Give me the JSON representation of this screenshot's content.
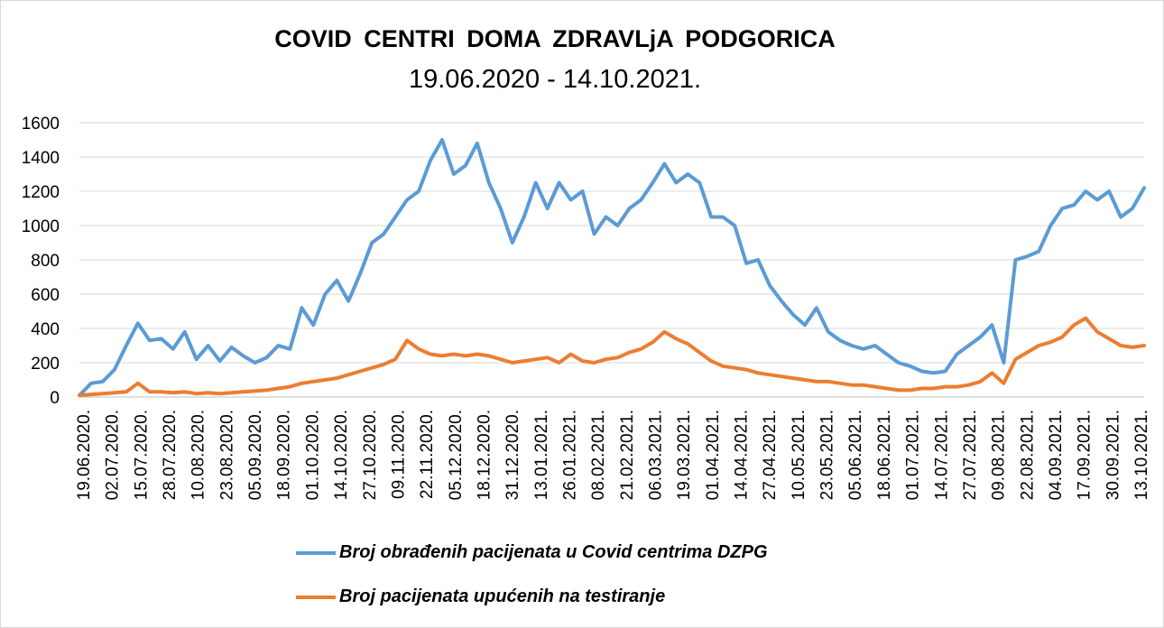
{
  "title": "COVID  CENTRI  DOMA  ZDRAVLjA  PODGORICA",
  "subtitle": "19.06.2020 - 14.10.2021.",
  "chart_data": {
    "type": "line",
    "title": "COVID  CENTRI  DOMA  ZDRAVLjA  PODGORICA",
    "subtitle": "19.06.2020 - 14.10.2021.",
    "ylim": [
      0,
      1600
    ],
    "yticks": [
      0,
      200,
      400,
      600,
      800,
      1000,
      1200,
      1400,
      1600
    ],
    "grid": true,
    "legend": "bottom",
    "x_tick_labels": [
      "19.06.2020.",
      "02.07.2020.",
      "15.07.2020.",
      "28.07.2020.",
      "10.08.2020.",
      "23.08.2020.",
      "05.09.2020.",
      "18.09.2020.",
      "01.10.2020.",
      "14.10.2020.",
      "27.10.2020.",
      "09.11.2020.",
      "22.11.2020.",
      "05.12.2020.",
      "18.12.2020.",
      "31.12.2020.",
      "13.01.2021.",
      "26.01.2021.",
      "08.02.2021.",
      "21.02.2021.",
      "06.03.2021.",
      "19.03.2021.",
      "01.04.2021.",
      "14.04.2021.",
      "27.04.2021.",
      "10.05.2021.",
      "23.05.2021.",
      "05.06.2021.",
      "18.06.2021.",
      "01.07.2021.",
      "14.07.2021.",
      "27.07.2021.",
      "09.08.2021.",
      "22.08.2021.",
      "04.09.2021.",
      "17.09.2021.",
      "30.09.2021.",
      "13.10.2021."
    ],
    "series": [
      {
        "name": "Broj obrađenih pacijenata u Covid centrima DZPG",
        "color": "#5b9bd5",
        "values": [
          10,
          80,
          90,
          160,
          300,
          430,
          330,
          340,
          280,
          380,
          220,
          300,
          210,
          290,
          240,
          200,
          230,
          300,
          280,
          520,
          420,
          600,
          680,
          560,
          720,
          900,
          950,
          1050,
          1150,
          1200,
          1380,
          1500,
          1300,
          1350,
          1480,
          1250,
          1100,
          900,
          1050,
          1250,
          1100,
          1250,
          1150,
          1200,
          950,
          1050,
          1000,
          1100,
          1150,
          1250,
          1360,
          1250,
          1300,
          1250,
          1050,
          1050,
          1000,
          780,
          800,
          650,
          560,
          480,
          420,
          520,
          380,
          330,
          300,
          280,
          300,
          250,
          200,
          180,
          150,
          140,
          150,
          250,
          300,
          350,
          420,
          200,
          800,
          820,
          850,
          1000,
          1100,
          1120,
          1200,
          1150,
          1200,
          1050,
          1100,
          1220
        ]
      },
      {
        "name": "Broj pacijenata upućenih na testiranje",
        "color": "#ed7d31",
        "values": [
          10,
          15,
          20,
          25,
          30,
          80,
          30,
          30,
          25,
          30,
          20,
          25,
          20,
          25,
          30,
          35,
          40,
          50,
          60,
          80,
          90,
          100,
          110,
          130,
          150,
          170,
          190,
          220,
          330,
          280,
          250,
          240,
          250,
          240,
          250,
          240,
          220,
          200,
          210,
          220,
          230,
          200,
          250,
          210,
          200,
          220,
          230,
          260,
          280,
          320,
          380,
          340,
          310,
          260,
          210,
          180,
          170,
          160,
          140,
          130,
          120,
          110,
          100,
          90,
          90,
          80,
          70,
          70,
          60,
          50,
          40,
          40,
          50,
          50,
          60,
          60,
          70,
          90,
          140,
          80,
          220,
          260,
          300,
          320,
          350,
          420,
          460,
          380,
          340,
          300,
          290,
          300
        ]
      }
    ]
  }
}
